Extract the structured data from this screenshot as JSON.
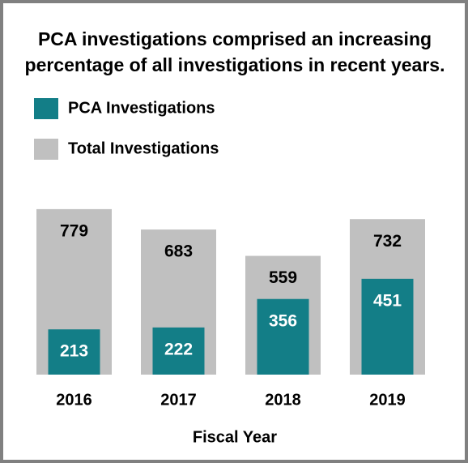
{
  "chart_data": {
    "type": "bar",
    "title": [
      "PCA investigations comprised an increasing",
      "percentage of all investigations in recent years."
    ],
    "categories": [
      "2016",
      "2017",
      "2018",
      "2019"
    ],
    "xlabel": "Fiscal Year",
    "series": [
      {
        "name": "PCA Investigations",
        "color": "#137e87",
        "values": [
          213,
          222,
          356,
          451
        ]
      },
      {
        "name": "Total Investigations",
        "color": "#c0c0c0",
        "values": [
          779,
          683,
          559,
          732
        ]
      }
    ]
  }
}
